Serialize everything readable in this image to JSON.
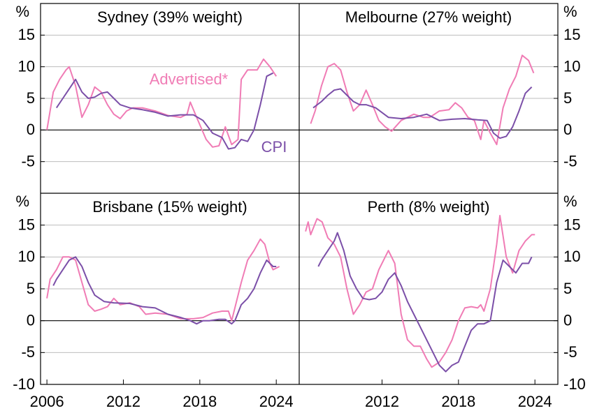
{
  "chart_data": [
    {
      "type": "line",
      "title": "Sydney (39% weight)",
      "unit": "%",
      "xlim": [
        2005.5,
        2025.8
      ],
      "ylim": [
        -10,
        20
      ],
      "yticks": [
        -5,
        0,
        5,
        10,
        15
      ],
      "series": [
        {
          "name": "Advertised*",
          "color": "#f07cb5",
          "x": [
            2006.0,
            2006.5,
            2007.0,
            2007.5,
            2007.75,
            2008.25,
            2008.75,
            2009.25,
            2009.75,
            2010.25,
            2010.75,
            2011.25,
            2011.75,
            2012.25,
            2012.75,
            2013.5,
            2014.5,
            2015.5,
            2016.5,
            2017.0,
            2017.25,
            2017.75,
            2018.5,
            2019.0,
            2019.5,
            2020.0,
            2020.5,
            2021.0,
            2021.25,
            2021.75,
            2022.5,
            2023.0,
            2023.5,
            2024.0
          ],
          "values": [
            0,
            6,
            8,
            9.5,
            10,
            7,
            2,
            4,
            6.8,
            6,
            4,
            2.5,
            1.8,
            3,
            3.5,
            3.5,
            3,
            2.3,
            2,
            2.5,
            4.4,
            2,
            -1.5,
            -2.7,
            -2.5,
            0.5,
            -2.3,
            -1.5,
            8,
            9.5,
            9.5,
            11.2,
            10,
            8.5
          ]
        },
        {
          "name": "CPI",
          "color": "#7b4fa8",
          "x": [
            2006.75,
            2007.25,
            2007.75,
            2008.25,
            2008.75,
            2009.25,
            2009.75,
            2010.25,
            2010.75,
            2011.25,
            2011.75,
            2012.5,
            2013.5,
            2014.5,
            2015.5,
            2016.5,
            2017.5,
            2018.25,
            2019.0,
            2019.75,
            2020.25,
            2020.75,
            2021.25,
            2021.75,
            2022.25,
            2022.75,
            2023.25,
            2023.75
          ],
          "values": [
            3.5,
            5,
            6.5,
            8,
            6,
            5,
            5.2,
            5.8,
            6,
            5,
            4,
            3.5,
            3.2,
            2.8,
            2.2,
            2.4,
            2.4,
            1.5,
            -0.5,
            -1.2,
            -3,
            -2.8,
            -1.5,
            -1.8,
            0,
            4,
            8.5,
            9
          ]
        }
      ]
    },
    {
      "type": "line",
      "title": "Melbourne (27% weight)",
      "unit": "%",
      "xlim": [
        2005.5,
        2025.8
      ],
      "ylim": [
        -10,
        20
      ],
      "yticks": [
        -5,
        0,
        5,
        10,
        15
      ],
      "series": [
        {
          "color": "#f07cb5",
          "x": [
            2006.4,
            2006.75,
            2007.25,
            2007.75,
            2008.25,
            2008.75,
            2009.25,
            2009.75,
            2010.25,
            2010.75,
            2011.25,
            2011.75,
            2012.25,
            2012.75,
            2013.5,
            2014.5,
            2015.25,
            2015.75,
            2016.5,
            2017.25,
            2017.75,
            2018.25,
            2018.75,
            2019.25,
            2019.75,
            2020.0,
            2020.5,
            2021.0,
            2021.5,
            2022.0,
            2022.5,
            2023.0,
            2023.5,
            2023.9
          ],
          "values": [
            1,
            3,
            7,
            10,
            10.5,
            9.5,
            6,
            3,
            4,
            6.3,
            4,
            1.5,
            0.5,
            -0.2,
            1.5,
            2.5,
            2,
            2,
            3,
            3.2,
            4.3,
            3.5,
            2,
            1.5,
            -1.5,
            1.5,
            -0.5,
            -2.3,
            3.5,
            6.5,
            8.5,
            11.8,
            11,
            9
          ]
        },
        {
          "color": "#7b4fa8",
          "x": [
            2006.6,
            2007.25,
            2007.75,
            2008.25,
            2008.75,
            2009.25,
            2009.75,
            2010.25,
            2010.75,
            2011.5,
            2012.5,
            2013.5,
            2014.5,
            2015.5,
            2016.5,
            2017.5,
            2018.5,
            2019.5,
            2020.25,
            2020.75,
            2021.25,
            2021.75,
            2022.25,
            2022.75,
            2023.25,
            2023.75
          ],
          "values": [
            3.5,
            4.5,
            5.5,
            6.3,
            6.5,
            5.5,
            4.5,
            4,
            4,
            3.5,
            2,
            1.8,
            2,
            2.5,
            1.5,
            1.7,
            1.8,
            1.6,
            1.5,
            -0.5,
            -1.3,
            -1,
            0.5,
            3,
            5.8,
            6.8
          ]
        }
      ]
    },
    {
      "type": "line",
      "title": "Brisbane (15% weight)",
      "unit": "%",
      "xlim": [
        2005.5,
        2025.8
      ],
      "ylim": [
        -10,
        20
      ],
      "yticks": [
        -10,
        -5,
        0,
        5,
        10,
        15
      ],
      "xticks": [
        2006,
        2012,
        2018,
        2024
      ],
      "series": [
        {
          "color": "#f07cb5",
          "x": [
            2006.0,
            2006.25,
            2006.75,
            2007.25,
            2007.75,
            2008.25,
            2008.75,
            2009.25,
            2009.75,
            2010.25,
            2010.75,
            2011.25,
            2011.75,
            2012.5,
            2013.25,
            2013.75,
            2014.5,
            2015.5,
            2016.5,
            2017.5,
            2018.25,
            2019.0,
            2019.75,
            2020.25,
            2020.5,
            2020.75,
            2021.25,
            2021.75,
            2022.25,
            2022.75,
            2023.1,
            2023.5,
            2023.75,
            2024.25
          ],
          "values": [
            3.5,
            6.5,
            8,
            10,
            10,
            9.5,
            6,
            2.5,
            1.5,
            1.8,
            2.2,
            3.5,
            2.5,
            2.8,
            2.2,
            1,
            1.2,
            1,
            0.3,
            0.3,
            0.5,
            1.2,
            1.5,
            1.5,
            0,
            2,
            6,
            9.5,
            11,
            12.8,
            12,
            9,
            8,
            8.5
          ]
        },
        {
          "color": "#7b4fa8",
          "x": [
            2006.5,
            2006.75,
            2007.25,
            2007.75,
            2008.25,
            2008.75,
            2009.25,
            2009.75,
            2010.5,
            2011.25,
            2012.5,
            2013.5,
            2014.5,
            2015.5,
            2016.5,
            2017.25,
            2017.75,
            2018.25,
            2018.75,
            2019.5,
            2020.0,
            2020.5,
            2020.75,
            2021.25,
            2021.75,
            2022.25,
            2022.75,
            2023.25,
            2023.75,
            2024.0
          ],
          "values": [
            5.5,
            6.5,
            8,
            9.5,
            10,
            8.5,
            6,
            4,
            3,
            2.8,
            2.7,
            2.2,
            2,
            1,
            0.5,
            0,
            -0.5,
            0,
            0,
            0.2,
            0.2,
            -0.5,
            0,
            2.5,
            3.5,
            5,
            7.5,
            9.5,
            8.5,
            8.5
          ]
        }
      ]
    },
    {
      "type": "line",
      "title": "Perth (8% weight)",
      "unit": "%",
      "xlim": [
        2005.5,
        2025.8
      ],
      "ylim": [
        -10,
        20
      ],
      "yticks": [
        -10,
        -5,
        0,
        5,
        10,
        15
      ],
      "xticks": [
        2012,
        2018,
        2024
      ],
      "series": [
        {
          "color": "#f07cb5",
          "x": [
            2006.0,
            2006.2,
            2006.4,
            2006.9,
            2007.3,
            2007.75,
            2008.25,
            2008.75,
            2009.25,
            2009.75,
            2010.25,
            2010.75,
            2011.25,
            2011.75,
            2012.25,
            2012.5,
            2013.0,
            2013.5,
            2014.0,
            2014.5,
            2015.0,
            2015.5,
            2015.9,
            2016.5,
            2017.0,
            2017.5,
            2018.0,
            2018.5,
            2019.0,
            2019.5,
            2019.75,
            2020.0,
            2020.5,
            2021.0,
            2021.25,
            2021.75,
            2022.25,
            2022.75,
            2023.25,
            2023.75,
            2024.0
          ],
          "values": [
            14,
            15.5,
            13.5,
            16,
            15.5,
            13,
            12,
            10,
            5,
            1,
            2.5,
            4.5,
            5,
            8,
            10,
            11,
            9,
            1,
            -3,
            -4,
            -4,
            -6,
            -7.3,
            -6.5,
            -5,
            -3,
            0,
            2,
            2.2,
            2,
            2.5,
            1.5,
            5,
            12,
            16.5,
            10,
            7.5,
            11,
            12.5,
            13.5,
            13.5
          ]
        },
        {
          "color": "#7b4fa8",
          "x": [
            2007.0,
            2007.25,
            2007.75,
            2008.25,
            2008.5,
            2009.0,
            2009.5,
            2010.0,
            2010.5,
            2011.0,
            2011.5,
            2012.0,
            2012.5,
            2013.0,
            2013.5,
            2014.0,
            2014.5,
            2015.0,
            2015.5,
            2016.0,
            2016.5,
            2017.0,
            2017.5,
            2018.0,
            2018.5,
            2019.0,
            2019.5,
            2020.0,
            2020.5,
            2021.0,
            2021.5,
            2022.0,
            2022.5,
            2023.0,
            2023.5,
            2023.75
          ],
          "values": [
            8.5,
            9.5,
            11,
            12.5,
            13.8,
            11,
            7,
            5,
            3.5,
            3.3,
            3.5,
            4.5,
            6.5,
            7.5,
            5.5,
            3,
            1,
            -1,
            -3,
            -5,
            -7,
            -8,
            -7,
            -6.5,
            -4,
            -1.5,
            -0.5,
            -0.5,
            0,
            6,
            9.5,
            8.5,
            7.5,
            9,
            9,
            10
          ]
        }
      ]
    }
  ]
}
